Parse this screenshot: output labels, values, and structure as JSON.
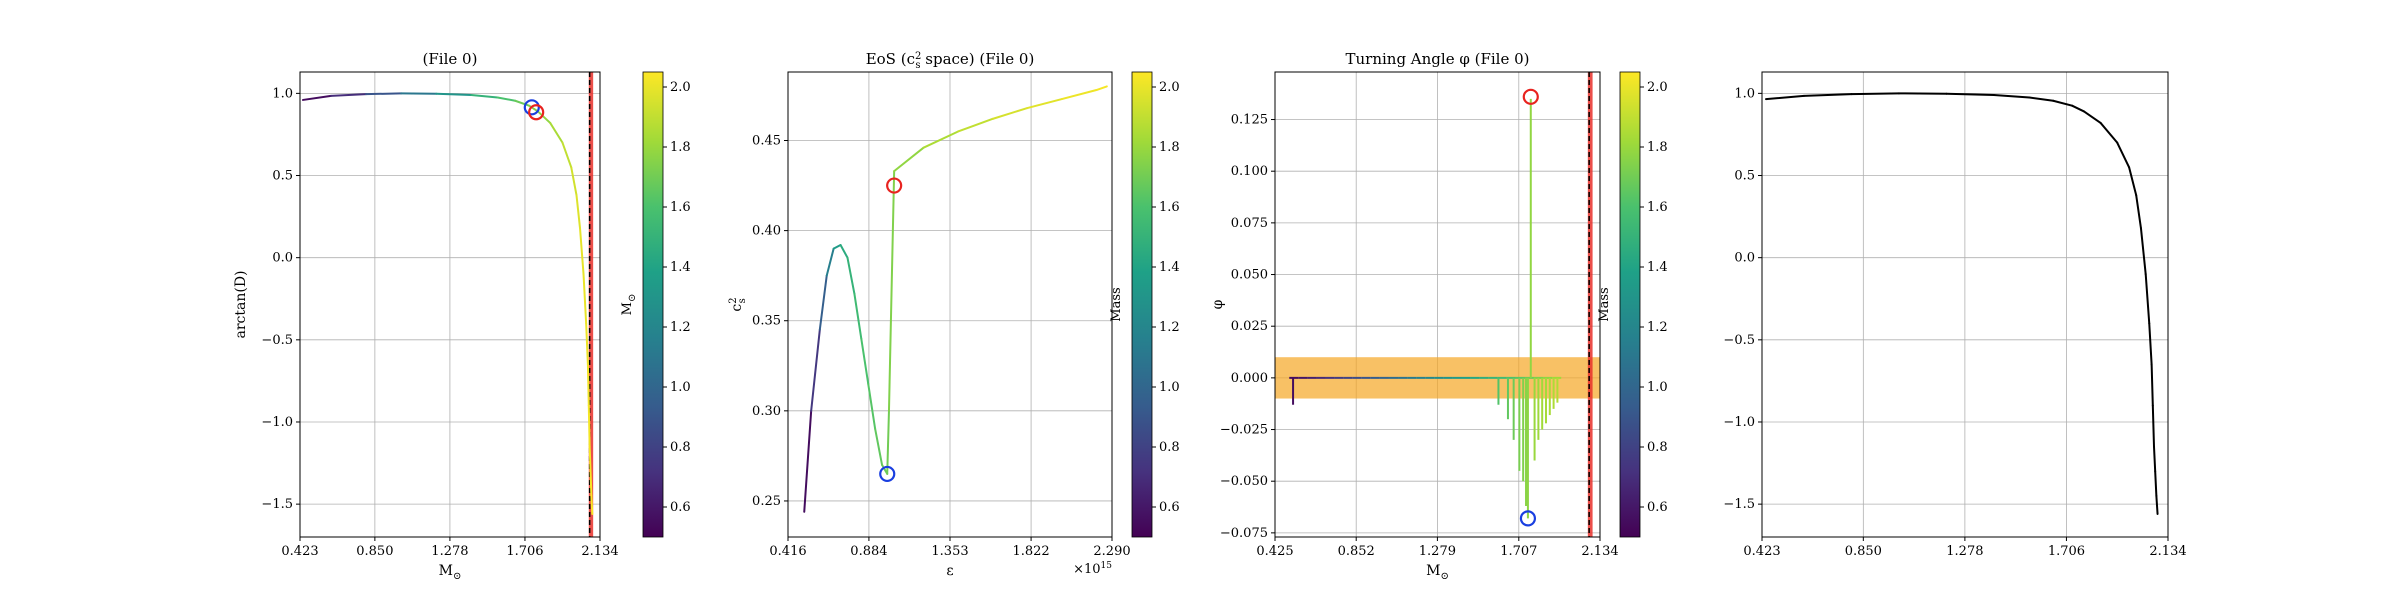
{
  "colors": {
    "colormap": "viridis",
    "orange_band": "#f5a623",
    "red_band": "#e8302a",
    "marker_red": "#e8231f",
    "marker_blue": "#1a3fe0",
    "black_line": "#000000"
  },
  "chart_data": [
    {
      "type": "line",
      "title": "(File 0)",
      "xlabel": "M_⊙",
      "ylabel": "arctan(D)",
      "xlim": [
        0.423,
        2.134
      ],
      "ylim": [
        -1.7,
        1.13
      ],
      "xticks": [
        0.423,
        0.85,
        1.278,
        1.706,
        2.134
      ],
      "xtick_labels": [
        "0.423",
        "0.850",
        "1.278",
        "1.706",
        "2.134"
      ],
      "yticks": [
        -1.5,
        -1.0,
        -0.5,
        0.0,
        0.5,
        1.0
      ],
      "ytick_labels": [
        "−1.5",
        "−1.0",
        "−0.5",
        "0.0",
        "0.5",
        "1.0"
      ],
      "grid": true,
      "colorbar": {
        "label": "M_⊙",
        "range": [
          0.5,
          2.05
        ],
        "ticks": [
          "0.6",
          "0.8",
          "1.0",
          "1.2",
          "1.4",
          "1.6",
          "1.8",
          "2.0"
        ]
      },
      "vertical_band": {
        "x0": 2.07,
        "x1": 2.095,
        "dashed_x": 2.075
      },
      "series": [
        {
          "x": [
            0.44,
            0.6,
            0.8,
            1.0,
            1.2,
            1.4,
            1.55,
            1.65,
            1.73,
            1.78,
            1.85,
            1.92,
            1.97,
            2.0,
            2.02,
            2.04,
            2.055,
            2.065,
            2.07,
            2.075,
            2.08,
            2.085,
            2.09
          ],
          "y": [
            0.96,
            0.985,
            0.995,
            1.0,
            0.998,
            0.99,
            0.975,
            0.955,
            0.925,
            0.89,
            0.82,
            0.7,
            0.55,
            0.38,
            0.18,
            -0.1,
            -0.4,
            -0.65,
            -0.9,
            -1.15,
            -1.3,
            -1.45,
            -1.56
          ],
          "mass": [
            0.55,
            0.7,
            0.9,
            1.1,
            1.3,
            1.5,
            1.6,
            1.68,
            1.74,
            1.78,
            1.84,
            1.9,
            1.94,
            1.97,
            1.99,
            2.0,
            2.01,
            2.02,
            2.025,
            2.03,
            2.035,
            2.04,
            2.045
          ]
        }
      ],
      "markers": [
        {
          "x": 1.745,
          "y": 0.915,
          "color": "blue"
        },
        {
          "x": 1.77,
          "y": 0.885,
          "color": "red"
        }
      ]
    },
    {
      "type": "line",
      "title": "EoS (c_s^2 space) (File 0)",
      "xlabel": "ε",
      "ylabel": "c_s^2",
      "x_multiplier_label": "×10^15",
      "xlim": [
        0.416,
        2.29
      ],
      "ylim": [
        0.23,
        0.488
      ],
      "xticks": [
        0.416,
        0.884,
        1.353,
        1.822,
        2.29
      ],
      "xtick_labels": [
        "0.416",
        "0.884",
        "1.353",
        "1.822",
        "2.290"
      ],
      "yticks": [
        0.25,
        0.3,
        0.35,
        0.4,
        0.45
      ],
      "ytick_labels": [
        "0.25",
        "0.30",
        "0.35",
        "0.40",
        "0.45"
      ],
      "grid": true,
      "colorbar": {
        "label": "Mass",
        "range": [
          0.5,
          2.05
        ],
        "ticks": [
          "0.6",
          "0.8",
          "1.0",
          "1.2",
          "1.4",
          "1.6",
          "1.8",
          "2.0"
        ]
      },
      "series": [
        {
          "x": [
            0.51,
            0.55,
            0.6,
            0.64,
            0.68,
            0.72,
            0.76,
            0.8,
            0.84,
            0.88,
            0.92,
            0.96,
            0.99,
            1.0,
            1.03,
            1.2,
            1.4,
            1.6,
            1.8,
            2.0,
            2.2,
            2.26
          ],
          "y": [
            0.244,
            0.3,
            0.345,
            0.375,
            0.39,
            0.392,
            0.385,
            0.365,
            0.34,
            0.315,
            0.29,
            0.27,
            0.265,
            0.3,
            0.433,
            0.446,
            0.455,
            0.462,
            0.468,
            0.473,
            0.478,
            0.48
          ],
          "mass": [
            0.55,
            0.75,
            0.95,
            1.15,
            1.35,
            1.45,
            1.5,
            1.55,
            1.6,
            1.63,
            1.66,
            1.68,
            1.7,
            1.74,
            1.78,
            1.85,
            1.9,
            1.95,
            1.98,
            2.01,
            2.03,
            2.04
          ]
        }
      ],
      "markers": [
        {
          "x": 0.99,
          "y": 0.265,
          "color": "blue"
        },
        {
          "x": 1.03,
          "y": 0.425,
          "color": "red"
        }
      ]
    },
    {
      "type": "line",
      "title": "Turning Angle φ (File 0)",
      "xlabel": "M_⊙",
      "ylabel": "φ",
      "xlim": [
        0.425,
        2.134
      ],
      "ylim": [
        -0.077,
        0.148
      ],
      "xticks": [
        0.425,
        0.852,
        1.279,
        1.707,
        2.134
      ],
      "xtick_labels": [
        "0.425",
        "0.852",
        "1.279",
        "1.707",
        "2.134"
      ],
      "yticks": [
        -0.075,
        -0.05,
        -0.025,
        0.0,
        0.025,
        0.05,
        0.075,
        0.1,
        0.125
      ],
      "ytick_labels": [
        "−0.075",
        "−0.050",
        "−0.025",
        "0.000",
        "0.025",
        "0.050",
        "0.075",
        "0.100",
        "0.125"
      ],
      "grid": true,
      "colorbar": {
        "label": "Mass",
        "range": [
          0.5,
          2.05
        ],
        "ticks": [
          "0.6",
          "0.8",
          "1.0",
          "1.2",
          "1.4",
          "1.6",
          "1.8",
          "2.0"
        ]
      },
      "horizontal_band": {
        "y0": -0.01,
        "y1": 0.01
      },
      "vertical_band": {
        "x0": 2.07,
        "x1": 2.095,
        "dashed_x": 2.077
      },
      "spikes": [
        {
          "x": 0.52,
          "y": -0.013,
          "mass": 0.55
        },
        {
          "x": 1.6,
          "y": -0.013,
          "mass": 1.62
        },
        {
          "x": 1.65,
          "y": -0.02,
          "mass": 1.66
        },
        {
          "x": 1.68,
          "y": -0.03,
          "mass": 1.69
        },
        {
          "x": 1.71,
          "y": -0.045,
          "mass": 1.72
        },
        {
          "x": 1.73,
          "y": -0.05,
          "mass": 1.74
        },
        {
          "x": 1.745,
          "y": -0.062,
          "mass": 1.76
        },
        {
          "x": 1.755,
          "y": -0.068,
          "mass": 1.77
        },
        {
          "x": 1.77,
          "y": 0.135,
          "mass": 1.78
        },
        {
          "x": 1.79,
          "y": -0.04,
          "mass": 1.8
        },
        {
          "x": 1.81,
          "y": -0.03,
          "mass": 1.81
        },
        {
          "x": 1.83,
          "y": -0.025,
          "mass": 1.82
        },
        {
          "x": 1.85,
          "y": -0.022,
          "mass": 1.83
        },
        {
          "x": 1.87,
          "y": -0.018,
          "mass": 1.84
        },
        {
          "x": 1.89,
          "y": -0.015,
          "mass": 1.85
        },
        {
          "x": 1.91,
          "y": -0.012,
          "mass": 1.86
        }
      ],
      "baseline": {
        "x0": 0.5,
        "x1": 1.93,
        "y": 0.0
      },
      "markers": [
        {
          "x": 1.755,
          "y": -0.068,
          "color": "blue"
        },
        {
          "x": 1.77,
          "y": 0.136,
          "color": "red"
        }
      ]
    },
    {
      "type": "line",
      "title": "",
      "xlabel": "",
      "ylabel": "",
      "xlim": [
        0.423,
        2.134
      ],
      "ylim": [
        -1.7,
        1.13
      ],
      "xticks": [
        0.423,
        0.85,
        1.278,
        1.706,
        2.134
      ],
      "xtick_labels": [
        "0.423",
        "0.850",
        "1.278",
        "1.706",
        "2.134"
      ],
      "yticks": [
        -1.5,
        -1.0,
        -0.5,
        0.0,
        0.5,
        1.0
      ],
      "ytick_labels": [
        "−1.5",
        "−1.0",
        "−0.5",
        "0.0",
        "0.5",
        "1.0"
      ],
      "grid": true,
      "series": [
        {
          "x": [
            0.44,
            0.6,
            0.8,
            1.0,
            1.2,
            1.4,
            1.55,
            1.65,
            1.73,
            1.78,
            1.85,
            1.92,
            1.97,
            2.0,
            2.02,
            2.04,
            2.055,
            2.065,
            2.07,
            2.075,
            2.08,
            2.085,
            2.09
          ],
          "y": [
            0.965,
            0.985,
            0.995,
            1.0,
            0.998,
            0.99,
            0.975,
            0.955,
            0.925,
            0.89,
            0.82,
            0.7,
            0.55,
            0.38,
            0.18,
            -0.1,
            -0.4,
            -0.65,
            -0.9,
            -1.15,
            -1.3,
            -1.45,
            -1.56
          ]
        }
      ]
    }
  ]
}
